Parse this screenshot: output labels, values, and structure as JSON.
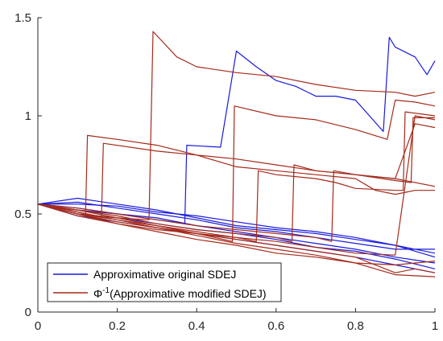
{
  "chart_data": {
    "type": "line",
    "title": "",
    "xlabel": "",
    "ylabel": "",
    "xlim": [
      0,
      1
    ],
    "ylim": [
      0,
      1.5
    ],
    "x_ticks": [
      "0",
      "0.2",
      "0.4",
      "0.6",
      "0.8",
      "1"
    ],
    "y_ticks": [
      "0",
      "0.5",
      "1",
      "1.5"
    ],
    "grid": false,
    "legend_position": "bottom-left",
    "colors": {
      "blue": "#1a1adb",
      "red": "#a52a1a",
      "axes": "#262626"
    },
    "legend": [
      {
        "label": "Approximative original SDEJ",
        "color": "#1a1adb"
      },
      {
        "label_prefix": "Φ",
        "label_sup": "-1",
        "label_suffix": "(Approximative modified SDEJ)",
        "color": "#a52a1a"
      }
    ],
    "series": [
      {
        "group": "blue",
        "points": [
          [
            0,
            0.55
          ],
          [
            0.1,
            0.52
          ],
          [
            0.2,
            0.5
          ],
          [
            0.3,
            0.47
          ],
          [
            0.37,
            0.45
          ],
          [
            0.375,
            0.85
          ],
          [
            0.46,
            0.84
          ],
          [
            0.5,
            1.33
          ],
          [
            0.55,
            1.25
          ],
          [
            0.6,
            1.18
          ],
          [
            0.65,
            1.15
          ],
          [
            0.7,
            1.1
          ],
          [
            0.75,
            1.1
          ],
          [
            0.8,
            1.08
          ],
          [
            0.87,
            0.92
          ],
          [
            0.885,
            1.4
          ],
          [
            0.9,
            1.35
          ],
          [
            0.95,
            1.3
          ],
          [
            0.98,
            1.21
          ],
          [
            1,
            1.28
          ]
        ]
      },
      {
        "group": "blue",
        "points": [
          [
            0,
            0.55
          ],
          [
            0.1,
            0.58
          ],
          [
            0.2,
            0.55
          ],
          [
            0.3,
            0.52
          ],
          [
            0.4,
            0.48
          ],
          [
            0.5,
            0.44
          ],
          [
            0.6,
            0.42
          ],
          [
            0.7,
            0.4
          ],
          [
            0.8,
            0.37
          ],
          [
            0.9,
            0.34
          ],
          [
            1,
            0.3
          ]
        ]
      },
      {
        "group": "blue",
        "points": [
          [
            0,
            0.55
          ],
          [
            0.1,
            0.53
          ],
          [
            0.2,
            0.5
          ],
          [
            0.3,
            0.48
          ],
          [
            0.4,
            0.44
          ],
          [
            0.5,
            0.41
          ],
          [
            0.6,
            0.38
          ],
          [
            0.7,
            0.35
          ],
          [
            0.8,
            0.32
          ],
          [
            0.9,
            0.28
          ],
          [
            1,
            0.25
          ]
        ]
      },
      {
        "group": "blue",
        "points": [
          [
            0,
            0.55
          ],
          [
            0.1,
            0.5
          ],
          [
            0.2,
            0.48
          ],
          [
            0.3,
            0.45
          ],
          [
            0.4,
            0.42
          ],
          [
            0.5,
            0.4
          ],
          [
            0.6,
            0.37
          ],
          [
            0.7,
            0.33
          ],
          [
            0.8,
            0.31
          ],
          [
            0.9,
            0.27
          ],
          [
            1,
            0.22
          ]
        ]
      },
      {
        "group": "blue",
        "points": [
          [
            0,
            0.55
          ],
          [
            0.1,
            0.56
          ],
          [
            0.2,
            0.53
          ],
          [
            0.3,
            0.5
          ],
          [
            0.4,
            0.47
          ],
          [
            0.5,
            0.43
          ],
          [
            0.6,
            0.41
          ],
          [
            0.7,
            0.38
          ],
          [
            0.8,
            0.35
          ],
          [
            0.9,
            0.32
          ],
          [
            1,
            0.32
          ]
        ]
      },
      {
        "group": "blue",
        "points": [
          [
            0,
            0.55
          ],
          [
            0.1,
            0.49
          ],
          [
            0.2,
            0.46
          ],
          [
            0.3,
            0.43
          ],
          [
            0.4,
            0.4
          ],
          [
            0.5,
            0.37
          ],
          [
            0.6,
            0.34
          ],
          [
            0.7,
            0.31
          ],
          [
            0.8,
            0.28
          ],
          [
            0.9,
            0.24
          ],
          [
            1,
            0.2
          ]
        ]
      },
      {
        "group": "blue",
        "points": [
          [
            0,
            0.55
          ],
          [
            0.1,
            0.55
          ],
          [
            0.2,
            0.54
          ],
          [
            0.3,
            0.51
          ],
          [
            0.4,
            0.49
          ],
          [
            0.5,
            0.46
          ],
          [
            0.6,
            0.43
          ],
          [
            0.7,
            0.41
          ],
          [
            0.8,
            0.38
          ],
          [
            0.9,
            0.34
          ],
          [
            1,
            0.28
          ]
        ]
      },
      {
        "group": "red",
        "points": [
          [
            0,
            0.55
          ],
          [
            0.1,
            0.5
          ],
          [
            0.2,
            0.48
          ],
          [
            0.28,
            0.47
          ],
          [
            0.29,
            1.43
          ],
          [
            0.35,
            1.3
          ],
          [
            0.4,
            1.25
          ],
          [
            0.5,
            1.22
          ],
          [
            0.6,
            1.2
          ],
          [
            0.7,
            1.16
          ],
          [
            0.8,
            1.13
          ],
          [
            0.9,
            1.12
          ],
          [
            0.95,
            1.1
          ],
          [
            1,
            1.12
          ]
        ]
      },
      {
        "group": "red",
        "points": [
          [
            0,
            0.55
          ],
          [
            0.08,
            0.52
          ],
          [
            0.12,
            0.5
          ],
          [
            0.125,
            0.9
          ],
          [
            0.2,
            0.88
          ],
          [
            0.3,
            0.85
          ],
          [
            0.4,
            0.8
          ],
          [
            0.5,
            0.78
          ],
          [
            0.6,
            0.75
          ],
          [
            0.7,
            0.72
          ],
          [
            0.8,
            0.7
          ],
          [
            0.9,
            0.68
          ],
          [
            0.95,
            0.96
          ],
          [
            1,
            0.94
          ]
        ]
      },
      {
        "group": "red",
        "points": [
          [
            0,
            0.55
          ],
          [
            0.1,
            0.5
          ],
          [
            0.16,
            0.47
          ],
          [
            0.165,
            0.86
          ],
          [
            0.3,
            0.82
          ],
          [
            0.4,
            0.8
          ],
          [
            0.5,
            0.74
          ],
          [
            0.6,
            0.72
          ],
          [
            0.7,
            0.7
          ],
          [
            0.8,
            0.68
          ],
          [
            0.85,
            0.62
          ],
          [
            0.9,
            0.6
          ],
          [
            0.95,
            0.62
          ],
          [
            1,
            0.62
          ]
        ]
      },
      {
        "group": "red",
        "points": [
          [
            0,
            0.55
          ],
          [
            0.1,
            0.5
          ],
          [
            0.2,
            0.45
          ],
          [
            0.3,
            0.42
          ],
          [
            0.4,
            0.4
          ],
          [
            0.5,
            0.38
          ],
          [
            0.6,
            0.36
          ],
          [
            0.7,
            0.33
          ],
          [
            0.8,
            0.3
          ],
          [
            0.9,
            0.29
          ],
          [
            0.95,
            1.0
          ],
          [
            1,
            0.98
          ]
        ]
      },
      {
        "group": "red",
        "points": [
          [
            0,
            0.55
          ],
          [
            0.1,
            0.52
          ],
          [
            0.2,
            0.48
          ],
          [
            0.3,
            0.44
          ],
          [
            0.4,
            0.4
          ],
          [
            0.49,
            0.36
          ],
          [
            0.495,
            1.05
          ],
          [
            0.6,
            1.0
          ],
          [
            0.7,
            0.98
          ],
          [
            0.8,
            0.93
          ],
          [
            0.88,
            0.88
          ],
          [
            0.9,
            1.08
          ],
          [
            0.95,
            1.07
          ],
          [
            1,
            1.05
          ]
        ]
      },
      {
        "group": "red",
        "points": [
          [
            0,
            0.55
          ],
          [
            0.1,
            0.51
          ],
          [
            0.2,
            0.47
          ],
          [
            0.3,
            0.43
          ],
          [
            0.4,
            0.4
          ],
          [
            0.5,
            0.37
          ],
          [
            0.6,
            0.34
          ],
          [
            0.7,
            0.31
          ],
          [
            0.8,
            0.28
          ],
          [
            0.9,
            0.2
          ],
          [
            0.95,
            0.22
          ],
          [
            1,
            0.2
          ]
        ]
      },
      {
        "group": "red",
        "points": [
          [
            0,
            0.55
          ],
          [
            0.1,
            0.5
          ],
          [
            0.2,
            0.46
          ],
          [
            0.3,
            0.43
          ],
          [
            0.4,
            0.39
          ],
          [
            0.5,
            0.35
          ],
          [
            0.6,
            0.32
          ],
          [
            0.7,
            0.29
          ],
          [
            0.8,
            0.25
          ],
          [
            0.85,
            0.22
          ],
          [
            0.9,
            0.19
          ],
          [
            1,
            0.18
          ]
        ]
      },
      {
        "group": "red",
        "points": [
          [
            0,
            0.55
          ],
          [
            0.1,
            0.52
          ],
          [
            0.2,
            0.49
          ],
          [
            0.3,
            0.45
          ],
          [
            0.4,
            0.42
          ],
          [
            0.5,
            0.4
          ],
          [
            0.6,
            0.38
          ],
          [
            0.64,
            0.36
          ],
          [
            0.645,
            0.75
          ],
          [
            0.7,
            0.72
          ],
          [
            0.8,
            0.7
          ],
          [
            0.9,
            0.68
          ],
          [
            1,
            0.64
          ]
        ]
      },
      {
        "group": "red",
        "points": [
          [
            0,
            0.55
          ],
          [
            0.1,
            0.53
          ],
          [
            0.2,
            0.5
          ],
          [
            0.3,
            0.47
          ],
          [
            0.4,
            0.44
          ],
          [
            0.5,
            0.42
          ],
          [
            0.6,
            0.4
          ],
          [
            0.7,
            0.38
          ],
          [
            0.74,
            0.36
          ],
          [
            0.745,
            0.72
          ],
          [
            0.8,
            0.7
          ],
          [
            0.9,
            0.67
          ],
          [
            0.94,
            0.66
          ],
          [
            0.945,
            0.99
          ],
          [
            1,
            0.99
          ]
        ]
      },
      {
        "group": "red",
        "points": [
          [
            0,
            0.55
          ],
          [
            0.1,
            0.49
          ],
          [
            0.2,
            0.45
          ],
          [
            0.3,
            0.41
          ],
          [
            0.4,
            0.37
          ],
          [
            0.5,
            0.34
          ],
          [
            0.6,
            0.3
          ],
          [
            0.7,
            0.28
          ],
          [
            0.8,
            0.25
          ],
          [
            0.9,
            0.24
          ],
          [
            1,
            0.26
          ]
        ]
      },
      {
        "group": "red",
        "points": [
          [
            0,
            0.55
          ],
          [
            0.1,
            0.5
          ],
          [
            0.2,
            0.47
          ],
          [
            0.3,
            0.44
          ],
          [
            0.4,
            0.41
          ],
          [
            0.5,
            0.38
          ],
          [
            0.55,
            0.36
          ],
          [
            0.555,
            0.72
          ],
          [
            0.6,
            0.7
          ],
          [
            0.7,
            0.68
          ],
          [
            0.75,
            0.66
          ],
          [
            0.8,
            0.63
          ],
          [
            0.9,
            0.62
          ],
          [
            0.92,
            0.62
          ],
          [
            0.925,
            1.02
          ],
          [
            1,
            1.0
          ]
        ]
      }
    ]
  }
}
